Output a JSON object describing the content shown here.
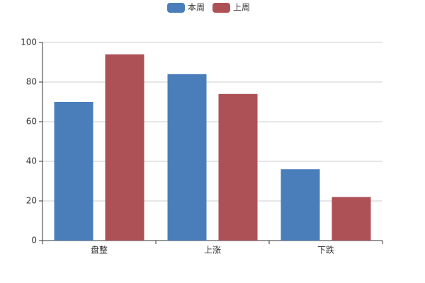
{
  "chart_data": {
    "type": "bar",
    "categories": [
      "盘整",
      "上涨",
      "下跌"
    ],
    "series": [
      {
        "name": "本周",
        "color": "#4a7ebb",
        "values": [
          70,
          84,
          36
        ]
      },
      {
        "name": "上周",
        "color": "#ae5157",
        "values": [
          94,
          74,
          22
        ]
      }
    ],
    "ylim": [
      0,
      100
    ],
    "yticks": [
      0,
      20,
      40,
      60,
      80,
      100
    ],
    "grid": true,
    "legend": "top"
  }
}
